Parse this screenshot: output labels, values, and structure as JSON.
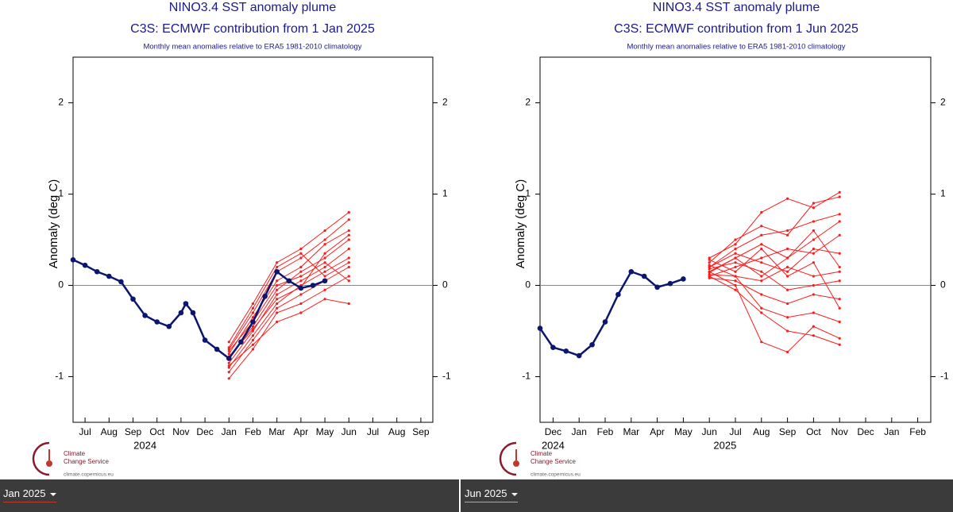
{
  "chart_data": [
    {
      "type": "line",
      "title": "NINO3.4 SST anomaly plume",
      "subtitle": "C3S: ECMWF contribution from 1 Jan 2025",
      "note": "Monthly mean anomalies relative to ERA5 1981-2010 climatology",
      "ylabel": "Anomaly (deg C)",
      "xlim": [
        -0.5,
        14.5
      ],
      "xticks": [
        {
          "value": 0,
          "label": "Jul"
        },
        {
          "value": 1,
          "label": "Aug"
        },
        {
          "value": 2,
          "label": "Sep"
        },
        {
          "value": 3,
          "label": "Oct"
        },
        {
          "value": 4,
          "label": "Nov"
        },
        {
          "value": 5,
          "label": "Dec"
        },
        {
          "value": 6,
          "label": "Jan"
        },
        {
          "value": 7,
          "label": "Feb"
        },
        {
          "value": 8,
          "label": "Mar"
        },
        {
          "value": 9,
          "label": "Apr"
        },
        {
          "value": 10,
          "label": "May"
        },
        {
          "value": 11,
          "label": "Jun"
        },
        {
          "value": 12,
          "label": "Jul"
        },
        {
          "value": 13,
          "label": "Aug"
        },
        {
          "value": 14,
          "label": "Sep"
        }
      ],
      "year_labels": [
        {
          "value": 2.5,
          "label": "2024"
        }
      ],
      "ylim": [
        -1.5,
        2.5
      ],
      "yticks": [
        -1,
        0,
        1,
        2
      ],
      "zero_line": true,
      "observed": {
        "color": "#0b1670",
        "x": [
          -0.5,
          0,
          0.5,
          1,
          1.5,
          2,
          2.5,
          3,
          3.5,
          4,
          4.2,
          4.5,
          5,
          5.5,
          6,
          6.5,
          7,
          7.5,
          8,
          8.5,
          9,
          9.5,
          10
        ],
        "values": [
          0.28,
          0.22,
          0.15,
          0.1,
          0.04,
          -0.15,
          -0.33,
          -0.4,
          -0.45,
          -0.3,
          -0.2,
          -0.3,
          -0.6,
          -0.7,
          -0.8,
          -0.62,
          -0.4,
          -0.12,
          0.15,
          0.05,
          -0.03,
          0.0,
          0.05
        ]
      },
      "ensemble": {
        "color": "#ff1a1a",
        "x": [
          6,
          7,
          8,
          9,
          10,
          11
        ],
        "members": [
          [
            -0.62,
            -0.2,
            0.25,
            0.4,
            0.6,
            0.8
          ],
          [
            -0.7,
            -0.3,
            0.15,
            0.3,
            0.5,
            0.72
          ],
          [
            -0.75,
            -0.35,
            0.05,
            0.2,
            0.45,
            0.6
          ],
          [
            -0.8,
            -0.45,
            -0.05,
            0.15,
            0.3,
            0.5
          ],
          [
            -0.85,
            -0.5,
            -0.1,
            0.05,
            0.2,
            0.4
          ],
          [
            -0.9,
            -0.55,
            -0.2,
            0.0,
            0.15,
            0.3
          ],
          [
            -0.95,
            -0.6,
            -0.25,
            -0.1,
            0.05,
            0.2
          ],
          [
            -1.02,
            -0.7,
            -0.3,
            -0.2,
            -0.05,
            0.1
          ],
          [
            -0.88,
            -0.65,
            -0.4,
            -0.3,
            -0.15,
            -0.2
          ],
          [
            -0.72,
            -0.4,
            0.0,
            0.1,
            0.25,
            0.05
          ],
          [
            -0.78,
            -0.48,
            -0.15,
            -0.02,
            0.35,
            0.55
          ],
          [
            -0.68,
            -0.25,
            0.2,
            0.35,
            0.1,
            0.25
          ]
        ]
      }
    },
    {
      "type": "line",
      "title": "NINO3.4 SST anomaly plume",
      "subtitle": "C3S: ECMWF contribution from 1 Jun 2025",
      "note": "Monthly mean anomalies relative to ERA5 1981-2010 climatology",
      "ylabel": "Anomaly (deg C)",
      "xlim": [
        -0.5,
        14.5
      ],
      "xticks": [
        {
          "value": 0,
          "label": "Dec"
        },
        {
          "value": 1,
          "label": "Jan"
        },
        {
          "value": 2,
          "label": "Feb"
        },
        {
          "value": 3,
          "label": "Mar"
        },
        {
          "value": 4,
          "label": "Apr"
        },
        {
          "value": 5,
          "label": "May"
        },
        {
          "value": 6,
          "label": "Jun"
        },
        {
          "value": 7,
          "label": "Jul"
        },
        {
          "value": 8,
          "label": "Aug"
        },
        {
          "value": 9,
          "label": "Sep"
        },
        {
          "value": 10,
          "label": "Oct"
        },
        {
          "value": 11,
          "label": "Nov"
        },
        {
          "value": 12,
          "label": "Dec"
        },
        {
          "value": 13,
          "label": "Jan"
        },
        {
          "value": 14,
          "label": "Feb"
        }
      ],
      "year_labels": [
        {
          "value": 0,
          "label": "2024"
        },
        {
          "value": 6.6,
          "label": "2025"
        }
      ],
      "ylim": [
        -1.5,
        2.5
      ],
      "yticks": [
        -1,
        0,
        1,
        2
      ],
      "zero_line": true,
      "observed": {
        "color": "#0b1670",
        "x": [
          -0.5,
          0,
          0.5,
          1,
          1.5,
          2,
          2.5,
          3,
          3.5,
          4,
          4.5,
          5
        ],
        "values": [
          -0.47,
          -0.68,
          -0.72,
          -0.77,
          -0.65,
          -0.4,
          -0.1,
          0.15,
          0.1,
          -0.02,
          0.02,
          0.07
        ]
      },
      "ensemble": {
        "color": "#ff1a1a",
        "x": [
          6,
          7,
          8,
          9,
          10,
          11
        ],
        "members": [
          [
            0.3,
            0.45,
            0.8,
            0.95,
            0.85,
            1.02
          ],
          [
            0.25,
            0.5,
            0.65,
            0.55,
            0.9,
            0.97
          ],
          [
            0.2,
            0.4,
            0.55,
            0.6,
            0.7,
            0.78
          ],
          [
            0.15,
            0.3,
            0.45,
            0.3,
            0.5,
            0.7
          ],
          [
            0.1,
            0.2,
            0.3,
            0.4,
            0.35,
            0.55
          ],
          [
            0.2,
            0.35,
            0.25,
            0.15,
            0.4,
            0.35
          ],
          [
            0.12,
            0.1,
            0.05,
            0.2,
            0.1,
            0.15
          ],
          [
            0.18,
            0.25,
            0.15,
            -0.05,
            0.0,
            0.05
          ],
          [
            0.08,
            0.05,
            -0.1,
            -0.2,
            -0.1,
            -0.15
          ],
          [
            0.22,
            0.1,
            -0.25,
            -0.35,
            -0.3,
            -0.4
          ],
          [
            0.15,
            0.0,
            -0.62,
            -0.73,
            -0.45,
            -0.58
          ],
          [
            0.1,
            -0.05,
            -0.3,
            -0.5,
            -0.55,
            -0.65
          ],
          [
            0.28,
            0.15,
            0.4,
            0.1,
            0.25,
            -0.25
          ],
          [
            0.14,
            0.3,
            0.1,
            0.3,
            0.6,
            0.2
          ]
        ]
      }
    }
  ],
  "logo": {
    "line1": "Climate",
    "line2": "Change Service",
    "url": "climate.copernicus.eu"
  },
  "dropdowns": [
    "Jan 2025",
    "Jun 2025"
  ]
}
